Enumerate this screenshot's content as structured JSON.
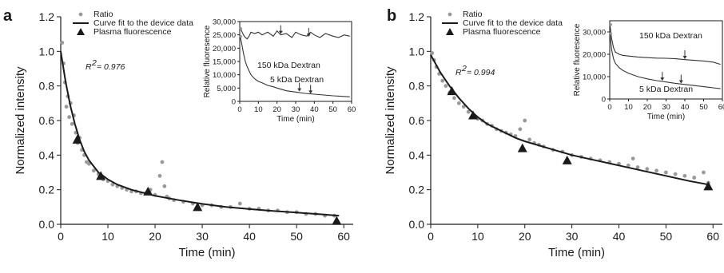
{
  "chart_data": [
    {
      "type": "scatter",
      "panel_label": "a",
      "xlabel": "Time (min)",
      "ylabel": "Normalized intensity",
      "xlim": [
        0,
        62
      ],
      "ylim": [
        0,
        1.2
      ],
      "x_ticks": [
        "0",
        "10",
        "20",
        "30",
        "40",
        "50",
        "60"
      ],
      "y_ticks": [
        "0.0",
        "0.2",
        "0.4",
        "0.6",
        "0.8",
        "1.0",
        "1.2"
      ],
      "legend": {
        "position": "top-left",
        "entries": [
          {
            "label": "Ratio",
            "marker": "gray-dot"
          },
          {
            "label": "Curve fit to the device data",
            "marker": "black-line"
          },
          {
            "label": "Plasma fluorescence",
            "marker": "black-triangle"
          }
        ]
      },
      "r2_label": "R",
      "r2_sup": "2",
      "r2_value": "= 0.976",
      "series": [
        {
          "name": "Ratio",
          "style": "scatter",
          "x": [
            0.3,
            0.6,
            0.9,
            1.2,
            1.5,
            1.8,
            2.1,
            2.4,
            2.8,
            3.2,
            3.6,
            4.0,
            4.5,
            5.0,
            5.5,
            6.0,
            7.0,
            8.0,
            9.0,
            10.0,
            11.0,
            12.0,
            13.0,
            14.0,
            15.0,
            16.0,
            17.0,
            18.0,
            19.0,
            20.0,
            21.0,
            21.5,
            22.0,
            22.5,
            23.0,
            24.0,
            26.0,
            28.0,
            30.0,
            32.0,
            34.0,
            36.0,
            38.0,
            40.0,
            42.0,
            44.0,
            46.0,
            48.0,
            50.0,
            52.0,
            54.0,
            56.0,
            58.0
          ],
          "y": [
            1.05,
            0.93,
            0.82,
            0.68,
            0.74,
            0.62,
            0.7,
            0.58,
            0.63,
            0.53,
            0.47,
            0.5,
            0.43,
            0.4,
            0.36,
            0.35,
            0.31,
            0.29,
            0.26,
            0.25,
            0.23,
            0.22,
            0.21,
            0.2,
            0.19,
            0.19,
            0.18,
            0.18,
            0.2,
            0.17,
            0.28,
            0.36,
            0.22,
            0.16,
            0.15,
            0.14,
            0.13,
            0.12,
            0.11,
            0.11,
            0.1,
            0.1,
            0.12,
            0.09,
            0.09,
            0.08,
            0.08,
            0.07,
            0.07,
            0.06,
            0.06,
            0.05,
            0.05
          ]
        },
        {
          "name": "Curve fit to the device data",
          "style": "line",
          "x": [
            0,
            1,
            2,
            3,
            4,
            5,
            6,
            8,
            10,
            12,
            15,
            20,
            25,
            30,
            35,
            40,
            45,
            50,
            55,
            59
          ],
          "y": [
            1.0,
            0.83,
            0.69,
            0.58,
            0.49,
            0.42,
            0.37,
            0.3,
            0.26,
            0.23,
            0.2,
            0.165,
            0.14,
            0.118,
            0.1,
            0.088,
            0.077,
            0.068,
            0.058,
            0.05
          ]
        },
        {
          "name": "Plasma fluorescence",
          "style": "triangle",
          "x": [
            3.5,
            8.5,
            18.5,
            29,
            58.5
          ],
          "y": [
            0.49,
            0.28,
            0.19,
            0.1,
            0.02
          ]
        }
      ],
      "inset": {
        "xlabel": "Time (min)",
        "ylabel": "Relative fluoresence",
        "xlim": [
          0,
          60
        ],
        "ylim": [
          0,
          30000
        ],
        "x_ticks": [
          "0",
          "10",
          "20",
          "30",
          "40",
          "50",
          "60"
        ],
        "y_ticks": [
          "0",
          "5,000",
          "10,000",
          "15,000",
          "20,000",
          "25,000",
          "30,000"
        ],
        "annotations": [
          "150 kDa Dextran",
          "5 kDa Dextran"
        ],
        "series": [
          {
            "name": "150 kDa Dextran",
            "x": [
              0,
              1,
              2,
              3,
              4,
              5,
              6,
              8,
              10,
              12,
              15,
              18,
              20,
              22,
              25,
              28,
              30,
              33,
              36,
              38,
              40,
              43,
              46,
              50,
              53,
              56,
              59
            ],
            "y": [
              28000,
              26500,
              25000,
              24000,
              23500,
              24500,
              26000,
              25500,
              26000,
              25000,
              26000,
              24500,
              26500,
              25000,
              25500,
              24000,
              26000,
              25000,
              24500,
              26000,
              25000,
              24000,
              25500,
              24500,
              24000,
              25000,
              24500
            ]
          },
          {
            "name": "5 kDa Dextran",
            "x": [
              0,
              1,
              2,
              3,
              4,
              5,
              6,
              8,
              10,
              12,
              15,
              18,
              20,
              25,
              30,
              35,
              40,
              45,
              50,
              55,
              59
            ],
            "y": [
              25000,
              22000,
              18000,
              15000,
              13000,
              11500,
              10000,
              8500,
              7500,
              7000,
              6000,
              5500,
              5000,
              4000,
              3500,
              3000,
              2700,
              2400,
              2100,
              1900,
              1700
            ]
          }
        ]
      }
    },
    {
      "type": "scatter",
      "panel_label": "b",
      "xlabel": "Time (min)",
      "ylabel": "Normalized intensity",
      "xlim": [
        0,
        62
      ],
      "ylim": [
        0,
        1.2
      ],
      "x_ticks": [
        "0",
        "10",
        "20",
        "30",
        "40",
        "50",
        "60"
      ],
      "y_ticks": [
        "0.0",
        "0.2",
        "0.4",
        "0.6",
        "0.8",
        "1.0",
        "1.2"
      ],
      "legend": {
        "position": "top-left",
        "entries": [
          {
            "label": "Ratio",
            "marker": "gray-dot"
          },
          {
            "label": "Curve fit to the device data",
            "marker": "black-line"
          },
          {
            "label": "Plasma fluorescence",
            "marker": "black-triangle"
          }
        ]
      },
      "r2_label": "R",
      "r2_sup": "2",
      "r2_value": "= 0.994",
      "series": [
        {
          "name": "Ratio",
          "style": "scatter",
          "x": [
            0.3,
            0.7,
            1.2,
            1.8,
            2.5,
            3.2,
            4.0,
            5.0,
            6.0,
            7.0,
            8.0,
            9.0,
            10.0,
            11.0,
            12.0,
            13.0,
            14.0,
            15.0,
            16.0,
            17.0,
            18.0,
            19.0,
            20.0,
            21.0,
            22.0,
            23.0,
            24.0,
            26.0,
            28.0,
            30.0,
            32.0,
            34.0,
            36.0,
            38.0,
            40.0,
            42.0,
            43.0,
            44.0,
            46.0,
            48.0,
            50.0,
            52.0,
            54.0,
            56.0,
            58.0,
            59.0
          ],
          "y": [
            0.99,
            0.95,
            0.91,
            0.87,
            0.83,
            0.8,
            0.76,
            0.73,
            0.7,
            0.68,
            0.65,
            0.63,
            0.61,
            0.6,
            0.58,
            0.57,
            0.55,
            0.54,
            0.53,
            0.52,
            0.51,
            0.55,
            0.6,
            0.49,
            0.47,
            0.46,
            0.45,
            0.43,
            0.42,
            0.4,
            0.39,
            0.38,
            0.37,
            0.36,
            0.35,
            0.34,
            0.38,
            0.33,
            0.32,
            0.31,
            0.3,
            0.29,
            0.28,
            0.27,
            0.3,
            0.24
          ]
        },
        {
          "name": "Curve fit to the device data",
          "style": "line",
          "x": [
            0,
            2,
            4,
            6,
            8,
            10,
            12,
            15,
            18,
            20,
            25,
            30,
            35,
            40,
            45,
            50,
            55,
            59
          ],
          "y": [
            0.98,
            0.88,
            0.8,
            0.73,
            0.67,
            0.62,
            0.58,
            0.54,
            0.5,
            0.48,
            0.44,
            0.4,
            0.37,
            0.34,
            0.31,
            0.28,
            0.25,
            0.23
          ]
        },
        {
          "name": "Plasma fluorescence",
          "style": "triangle",
          "x": [
            4.5,
            9,
            19.5,
            29,
            59
          ],
          "y": [
            0.77,
            0.63,
            0.44,
            0.37,
            0.22
          ]
        }
      ],
      "inset": {
        "xlabel": "Time (min)",
        "ylabel": "Relative fluoresence",
        "xlim": [
          0,
          60
        ],
        "ylim": [
          0,
          35000
        ],
        "x_ticks": [
          "0",
          "10",
          "20",
          "30",
          "40",
          "50",
          "60"
        ],
        "y_ticks": [
          "0",
          "10,000",
          "20,000",
          "30,000"
        ],
        "annotations": [
          "150 kDa Dextran",
          "5 kDa Dextran"
        ],
        "series": [
          {
            "name": "150 kDa Dextran",
            "x": [
              0,
              1,
              2,
              3,
              5,
              7,
              10,
              15,
              20,
              25,
              30,
              35,
              40,
              45,
              50,
              55,
              59
            ],
            "y": [
              34000,
              27000,
              23000,
              21000,
              20000,
              19500,
              19200,
              18800,
              18500,
              18300,
              18200,
              18000,
              17600,
              17300,
              17000,
              16500,
              15500
            ]
          },
          {
            "name": "5 kDa Dextran",
            "x": [
              0,
              1,
              2,
              3,
              5,
              7,
              10,
              15,
              20,
              25,
              30,
              35,
              40,
              45,
              50,
              55,
              59
            ],
            "y": [
              30000,
              22000,
              18000,
              16000,
              14000,
              12800,
              11500,
              10000,
              9000,
              8200,
              7600,
              7000,
              6500,
              6000,
              5500,
              5000,
              4600
            ]
          }
        ]
      }
    }
  ]
}
